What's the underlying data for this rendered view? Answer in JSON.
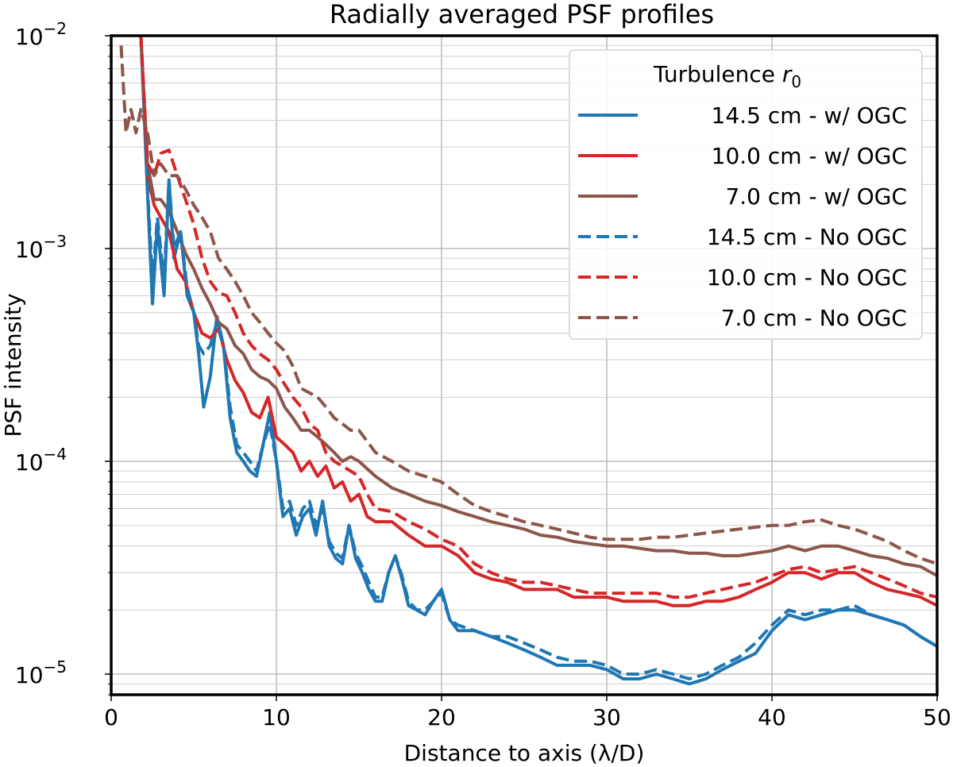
{
  "chart_data": {
    "type": "line",
    "title": "Radially averaged PSF profiles",
    "xlabel": "Distance to axis (λ/D)",
    "ylabel": "PSF intensity",
    "xlim": [
      0,
      50
    ],
    "ylim": [
      8e-06,
      0.01
    ],
    "yscale": "log",
    "grid": true,
    "x_ticks": [
      0,
      10,
      20,
      30,
      40,
      50
    ],
    "y_ticks": [
      {
        "value": 0.01,
        "base": "10",
        "exp": "−2"
      },
      {
        "value": 0.001,
        "base": "10",
        "exp": "−3"
      },
      {
        "value": 0.0001,
        "base": "10",
        "exp": "−4"
      },
      {
        "value": 1e-05,
        "base": "10",
        "exp": "−5"
      }
    ],
    "legend": {
      "title_text": "Turbulence ",
      "title_symbol": "r",
      "title_subscript": "0",
      "position": "top-right"
    },
    "series": [
      {
        "name": "14.5 cm - w/ OGC",
        "color": "#1f77b4",
        "dash": "solid",
        "x": [
          1.8,
          2.2,
          2.5,
          2.8,
          3.2,
          3.5,
          3.8,
          4.2,
          4.6,
          5.0,
          5.3,
          5.6,
          6.0,
          6.4,
          6.8,
          7.2,
          7.6,
          8.0,
          8.4,
          8.8,
          9.2,
          9.6,
          10.0,
          10.4,
          10.8,
          11.2,
          11.6,
          12.0,
          12.4,
          12.8,
          13.2,
          13.6,
          14.0,
          14.4,
          14.8,
          15.2,
          15.6,
          16.0,
          16.4,
          16.8,
          17.2,
          17.6,
          18.0,
          18.5,
          19.0,
          19.5,
          20.0,
          20.5,
          21.0,
          22,
          23,
          24,
          25,
          26,
          27,
          28,
          29,
          30,
          31,
          32,
          33,
          34,
          35,
          36,
          37,
          38,
          39,
          40,
          41,
          42,
          43,
          44,
          45,
          46,
          47,
          48,
          49,
          50
        ],
        "y": [
          0.01,
          0.0018,
          0.00055,
          0.0013,
          0.0006,
          0.0021,
          0.0009,
          0.0012,
          0.0006,
          0.0005,
          0.00032,
          0.00018,
          0.00025,
          0.00048,
          0.00035,
          0.00016,
          0.00011,
          0.0001,
          9e-05,
          8.5e-05,
          0.00012,
          0.00017,
          0.0001,
          5.5e-05,
          6e-05,
          4.5e-05,
          5.5e-05,
          6e-05,
          4.5e-05,
          6.5e-05,
          4e-05,
          3.5e-05,
          3.3e-05,
          5e-05,
          3.5e-05,
          3e-05,
          2.5e-05,
          2.2e-05,
          2.2e-05,
          3e-05,
          3.6e-05,
          2.8e-05,
          2.1e-05,
          2e-05,
          1.9e-05,
          2.2e-05,
          2.5e-05,
          1.8e-05,
          1.6e-05,
          1.6e-05,
          1.5e-05,
          1.4e-05,
          1.3e-05,
          1.2e-05,
          1.1e-05,
          1.1e-05,
          1.1e-05,
          1.05e-05,
          9.5e-06,
          9.5e-06,
          1e-05,
          9.5e-06,
          9e-06,
          9.5e-06,
          1.05e-05,
          1.15e-05,
          1.25e-05,
          1.6e-05,
          1.9e-05,
          1.8e-05,
          1.9e-05,
          2e-05,
          2e-05,
          1.9e-05,
          1.8e-05,
          1.7e-05,
          1.5e-05,
          1.35e-05
        ]
      },
      {
        "name": "10.0 cm - w/ OGC",
        "color": "#d62728",
        "dash": "solid",
        "x": [
          1.8,
          2.2,
          2.6,
          3.0,
          3.5,
          4.0,
          4.5,
          5.0,
          5.5,
          6.0,
          6.5,
          7.0,
          7.5,
          8.0,
          8.5,
          9.0,
          9.5,
          10.0,
          10.5,
          11.0,
          11.5,
          12.0,
          12.5,
          13.0,
          13.5,
          14.0,
          14.5,
          15.0,
          15.5,
          16.0,
          17,
          18,
          19,
          20,
          21,
          22,
          23,
          24,
          25,
          26,
          27,
          28,
          29,
          30,
          31,
          32,
          33,
          34,
          35,
          36,
          37,
          38,
          39,
          40,
          41,
          42,
          43,
          44,
          45,
          46,
          47,
          48,
          49,
          50
        ],
        "y": [
          0.01,
          0.0022,
          0.0016,
          0.0014,
          0.0012,
          0.0008,
          0.0007,
          0.0005,
          0.0004,
          0.00038,
          0.00042,
          0.0003,
          0.00024,
          0.00021,
          0.00017,
          0.00016,
          0.0002,
          0.00013,
          0.00012,
          0.00011,
          9e-05,
          0.0001,
          8.5e-05,
          9.5e-05,
          7.5e-05,
          8e-05,
          6.5e-05,
          7e-05,
          5.5e-05,
          5.2e-05,
          5.2e-05,
          4.5e-05,
          4e-05,
          4e-05,
          3.6e-05,
          3e-05,
          2.8e-05,
          2.7e-05,
          2.5e-05,
          2.5e-05,
          2.5e-05,
          2.3e-05,
          2.3e-05,
          2.3e-05,
          2.2e-05,
          2.2e-05,
          2.2e-05,
          2.1e-05,
          2.1e-05,
          2.2e-05,
          2.2e-05,
          2.3e-05,
          2.5e-05,
          2.7e-05,
          3e-05,
          3e-05,
          2.8e-05,
          3e-05,
          3e-05,
          2.7e-05,
          2.5e-05,
          2.4e-05,
          2.3e-05,
          2.1e-05
        ]
      },
      {
        "name": "7.0 cm - w/ OGC",
        "color": "#8c564b",
        "dash": "solid",
        "x": [
          1.8,
          2.2,
          2.6,
          3.0,
          3.5,
          4.0,
          4.5,
          5.0,
          5.5,
          6.0,
          6.5,
          7.0,
          7.5,
          8.0,
          8.5,
          9.0,
          9.5,
          10.0,
          10.5,
          11.0,
          11.5,
          12.0,
          12.5,
          13.0,
          13.5,
          14.0,
          14.5,
          15.0,
          16,
          17,
          18,
          19,
          20,
          21,
          22,
          23,
          24,
          25,
          26,
          27,
          28,
          29,
          30,
          31,
          32,
          33,
          34,
          35,
          36,
          37,
          38,
          39,
          40,
          41,
          42,
          43,
          44,
          45,
          46,
          47,
          48,
          49,
          50
        ],
        "y": [
          0.01,
          0.0025,
          0.0017,
          0.0017,
          0.0015,
          0.0012,
          0.00095,
          0.0008,
          0.00065,
          0.00055,
          0.00045,
          0.00042,
          0.00035,
          0.00032,
          0.00027,
          0.00025,
          0.00024,
          0.00022,
          0.00018,
          0.00016,
          0.00014,
          0.00014,
          0.00013,
          0.00012,
          0.00011,
          0.0001,
          0.000105,
          0.0001,
          8.5e-05,
          7.5e-05,
          7e-05,
          6.5e-05,
          6.2e-05,
          5.8e-05,
          5.5e-05,
          5.2e-05,
          5e-05,
          4.8e-05,
          4.5e-05,
          4.4e-05,
          4.2e-05,
          4.1e-05,
          4e-05,
          4e-05,
          3.9e-05,
          3.8e-05,
          3.8e-05,
          3.7e-05,
          3.7e-05,
          3.6e-05,
          3.6e-05,
          3.7e-05,
          3.8e-05,
          4e-05,
          3.8e-05,
          4e-05,
          4e-05,
          3.8e-05,
          3.6e-05,
          3.5e-05,
          3.3e-05,
          3.2e-05,
          2.9e-05
        ]
      },
      {
        "name": "14.5 cm - No OGC",
        "color": "#1f77b4",
        "dash": "dashed",
        "x": [
          1.8,
          2.2,
          2.5,
          2.8,
          3.2,
          3.5,
          3.8,
          4.2,
          4.6,
          5.0,
          5.3,
          5.6,
          6.0,
          6.4,
          6.8,
          7.2,
          7.6,
          8.0,
          8.4,
          8.8,
          9.2,
          9.6,
          10.0,
          10.4,
          10.8,
          11.2,
          11.6,
          12.0,
          12.4,
          12.8,
          13.2,
          13.6,
          14.0,
          14.4,
          14.8,
          15.2,
          15.6,
          16.0,
          16.4,
          16.8,
          17.2,
          17.6,
          18.0,
          18.5,
          19.0,
          19.5,
          20.0,
          20.5,
          21.0,
          22,
          23,
          24,
          25,
          26,
          27,
          28,
          29,
          30,
          31,
          32,
          33,
          34,
          35,
          36,
          37,
          38,
          39,
          40,
          41,
          42,
          43,
          44,
          45,
          46,
          47,
          48,
          49,
          50
        ],
        "y": [
          0.01,
          0.0019,
          0.0007,
          0.0014,
          0.0007,
          0.0021,
          0.001,
          0.0012,
          0.00065,
          0.0005,
          0.00035,
          0.00032,
          0.00035,
          0.00045,
          0.00035,
          0.00018,
          0.00012,
          0.00011,
          0.0001,
          9e-05,
          0.00012,
          0.00015,
          0.0001,
          6e-05,
          6.5e-05,
          5e-05,
          6e-05,
          6.5e-05,
          5e-05,
          6e-05,
          4.2e-05,
          3.7e-05,
          3.5e-05,
          5e-05,
          3.7e-05,
          3.2e-05,
          2.7e-05,
          2.3e-05,
          2.3e-05,
          3e-05,
          3.6e-05,
          2.9e-05,
          2.2e-05,
          2e-05,
          2e-05,
          2.2e-05,
          2.4e-05,
          1.8e-05,
          1.7e-05,
          1.6e-05,
          1.5e-05,
          1.5e-05,
          1.4e-05,
          1.3e-05,
          1.2e-05,
          1.15e-05,
          1.15e-05,
          1.1e-05,
          1e-05,
          1e-05,
          1.05e-05,
          1e-05,
          9.5e-06,
          1e-05,
          1.1e-05,
          1.2e-05,
          1.4e-05,
          1.7e-05,
          2e-05,
          1.9e-05,
          2e-05,
          2e-05,
          2.1e-05,
          1.9e-05,
          1.8e-05,
          1.7e-05,
          1.5e-05,
          1.35e-05
        ]
      },
      {
        "name": "10.0 cm - No OGC",
        "color": "#d62728",
        "dash": "dashed",
        "x": [
          1.8,
          2.2,
          2.6,
          3.0,
          3.5,
          4.0,
          4.5,
          5.0,
          5.5,
          6.0,
          6.5,
          7.0,
          7.5,
          8.0,
          8.5,
          9.0,
          9.5,
          10.0,
          10.5,
          11.0,
          11.5,
          12.0,
          12.5,
          13.0,
          13.5,
          14.0,
          14.5,
          15.0,
          15.5,
          16.0,
          17,
          18,
          19,
          20,
          21,
          22,
          23,
          24,
          25,
          26,
          27,
          28,
          29,
          30,
          31,
          32,
          33,
          34,
          35,
          36,
          37,
          38,
          39,
          40,
          41,
          42,
          43,
          44,
          45,
          46,
          47,
          48,
          49,
          50
        ],
        "y": [
          0.01,
          0.0025,
          0.0022,
          0.0028,
          0.0029,
          0.0022,
          0.0017,
          0.0013,
          0.0009,
          0.0007,
          0.00062,
          0.0006,
          0.0005,
          0.0004,
          0.00035,
          0.00032,
          0.0003,
          0.00027,
          0.00023,
          0.0002,
          0.00018,
          0.00015,
          0.00014,
          0.00011,
          0.0001,
          9.5e-05,
          9e-05,
          8.5e-05,
          7e-05,
          6e-05,
          5.8e-05,
          5.2e-05,
          4.8e-05,
          4.3e-05,
          4e-05,
          3.3e-05,
          3e-05,
          2.8e-05,
          2.7e-05,
          2.7e-05,
          2.6e-05,
          2.5e-05,
          2.4e-05,
          2.4e-05,
          2.4e-05,
          2.4e-05,
          2.4e-05,
          2.3e-05,
          2.3e-05,
          2.4e-05,
          2.5e-05,
          2.6e-05,
          2.7e-05,
          2.9e-05,
          3.1e-05,
          3.2e-05,
          3e-05,
          3.1e-05,
          3.2e-05,
          3e-05,
          2.8e-05,
          2.6e-05,
          2.4e-05,
          2.3e-05
        ]
      },
      {
        "name": "7.0 cm - No OGC",
        "color": "#8c564b",
        "dash": "dashed",
        "x": [
          0.6,
          0.9,
          1.2,
          1.5,
          1.8,
          2.2,
          2.6,
          3.0,
          3.5,
          4.0,
          4.5,
          5.0,
          5.5,
          6.0,
          6.5,
          7.0,
          7.5,
          8.0,
          8.5,
          9.0,
          9.5,
          10.0,
          10.5,
          11.0,
          11.5,
          12.0,
          12.5,
          13.0,
          13.5,
          14.0,
          14.5,
          15.0,
          16,
          17,
          18,
          19,
          20,
          21,
          22,
          23,
          24,
          25,
          26,
          27,
          28,
          29,
          30,
          31,
          32,
          33,
          34,
          35,
          36,
          37,
          38,
          39,
          40,
          41,
          42,
          43,
          44,
          45,
          46,
          47,
          48,
          49,
          50
        ],
        "y": [
          0.009,
          0.0035,
          0.0045,
          0.0035,
          0.0045,
          0.0035,
          0.0022,
          0.0025,
          0.0022,
          0.0022,
          0.0019,
          0.0016,
          0.0014,
          0.0012,
          0.0009,
          0.0008,
          0.0007,
          0.0006,
          0.0005,
          0.00045,
          0.0004,
          0.00036,
          0.00033,
          0.00028,
          0.00022,
          0.00021,
          0.0002,
          0.00018,
          0.00016,
          0.00015,
          0.00014,
          0.00014,
          0.00011,
          0.0001,
          9e-05,
          8.5e-05,
          8e-05,
          7e-05,
          6.2e-05,
          5.8e-05,
          5.5e-05,
          5.2e-05,
          5e-05,
          4.8e-05,
          4.6e-05,
          4.4e-05,
          4.3e-05,
          4.3e-05,
          4.3e-05,
          4.4e-05,
          4.4e-05,
          4.5e-05,
          4.6e-05,
          4.7e-05,
          4.8e-05,
          4.9e-05,
          5e-05,
          5e-05,
          5.2e-05,
          5.3e-05,
          5e-05,
          4.8e-05,
          4.5e-05,
          4.2e-05,
          3.8e-05,
          3.5e-05,
          3.3e-05
        ]
      }
    ]
  }
}
